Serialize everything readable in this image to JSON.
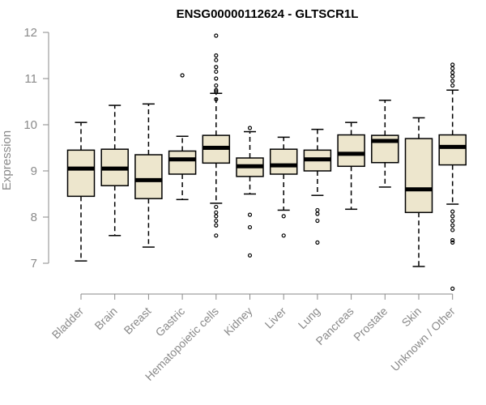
{
  "chart_data": {
    "type": "box",
    "title": "ENSG00000112624 - GLTSCR1L",
    "xlabel": "",
    "ylabel": "Expression",
    "ylim": [
      6.3,
      12.1
    ],
    "yticks": [
      7,
      8,
      9,
      10,
      11,
      12
    ],
    "grid": false,
    "box_color": "#ede6cd",
    "categories": [
      "Bladder",
      "Brain",
      "Breast",
      "Gastric",
      "Hematopoietic cells",
      "Kidney",
      "Liver",
      "Lung",
      "Pancreas",
      "Prostate",
      "Skin",
      "Unknown / Other"
    ],
    "boxes": [
      {
        "category": "Bladder",
        "whislo": 7.05,
        "q1": 8.45,
        "med": 9.05,
        "q3": 9.45,
        "whishi": 10.05,
        "fliers": []
      },
      {
        "category": "Brain",
        "whislo": 7.6,
        "q1": 8.68,
        "med": 9.05,
        "q3": 9.47,
        "whishi": 10.42,
        "fliers": []
      },
      {
        "category": "Breast",
        "whislo": 7.35,
        "q1": 8.4,
        "med": 8.8,
        "q3": 9.35,
        "whishi": 10.45,
        "fliers": []
      },
      {
        "category": "Gastric",
        "whislo": 8.38,
        "q1": 8.93,
        "med": 9.25,
        "q3": 9.43,
        "whishi": 9.75,
        "fliers": [
          11.07
        ]
      },
      {
        "category": "Hematopoietic cells",
        "whislo": 8.3,
        "q1": 9.17,
        "med": 9.5,
        "q3": 9.77,
        "whishi": 10.68,
        "fliers": [
          11.93,
          11.5,
          11.4,
          11.25,
          11.15,
          11.0,
          10.85,
          10.75,
          10.72,
          10.55,
          8.22,
          8.1,
          8.02,
          7.92,
          7.82,
          7.6
        ]
      },
      {
        "category": "Kidney",
        "whislo": 8.5,
        "q1": 8.88,
        "med": 9.1,
        "q3": 9.28,
        "whishi": 9.85,
        "fliers": [
          9.93,
          8.05,
          7.78,
          7.17
        ]
      },
      {
        "category": "Liver",
        "whislo": 8.15,
        "q1": 8.93,
        "med": 9.12,
        "q3": 9.47,
        "whishi": 9.73,
        "fliers": [
          8.02,
          7.6
        ]
      },
      {
        "category": "Lung",
        "whislo": 8.47,
        "q1": 9.0,
        "med": 9.25,
        "q3": 9.45,
        "whishi": 9.9,
        "fliers": [
          8.15,
          8.07,
          7.92,
          7.45
        ]
      },
      {
        "category": "Pancreas",
        "whislo": 8.17,
        "q1": 9.1,
        "med": 9.37,
        "q3": 9.78,
        "whishi": 10.05,
        "fliers": []
      },
      {
        "category": "Prostate",
        "whislo": 8.65,
        "q1": 9.18,
        "med": 9.65,
        "q3": 9.77,
        "whishi": 10.53,
        "fliers": []
      },
      {
        "category": "Skin",
        "whislo": 6.93,
        "q1": 8.1,
        "med": 8.6,
        "q3": 9.7,
        "whishi": 10.15,
        "fliers": []
      },
      {
        "category": "Unknown / Other",
        "whislo": 8.28,
        "q1": 9.13,
        "med": 9.52,
        "q3": 9.78,
        "whishi": 10.75,
        "fliers": [
          11.3,
          11.22,
          11.13,
          11.05,
          10.95,
          10.85,
          8.12,
          8.02,
          7.92,
          7.82,
          7.72,
          7.5,
          7.45,
          6.45
        ]
      }
    ]
  }
}
